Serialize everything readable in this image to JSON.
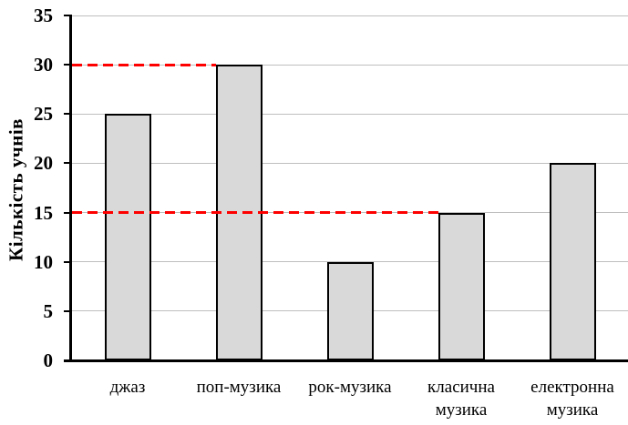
{
  "chart_data": {
    "type": "bar",
    "title": "",
    "ylabel": "Кількість учнів",
    "xlabel": "",
    "categories": [
      "джаз",
      "поп-музика",
      "рок-музика",
      "класична музика",
      "електронна музика"
    ],
    "values": [
      25,
      30,
      10,
      15,
      20
    ],
    "ylim": [
      0,
      35
    ],
    "yticks": [
      0,
      5,
      10,
      15,
      20,
      25,
      30,
      35
    ],
    "grid": true,
    "legend_position": "none",
    "bar_fill_color": "#d9d9d9",
    "bar_border_color": "#000000",
    "gridline_color": "#bfbfbf",
    "axis_color": "#000000",
    "background_color": "#ffffff",
    "reference_lines": [
      {
        "value": 30,
        "to_category": "поп-музика",
        "to_category_index": 1,
        "color": "#fe0000",
        "style": "dashed"
      },
      {
        "value": 15,
        "to_category": "класична музика",
        "to_category_index": 3,
        "color": "#fe0000",
        "style": "dashed"
      }
    ]
  }
}
